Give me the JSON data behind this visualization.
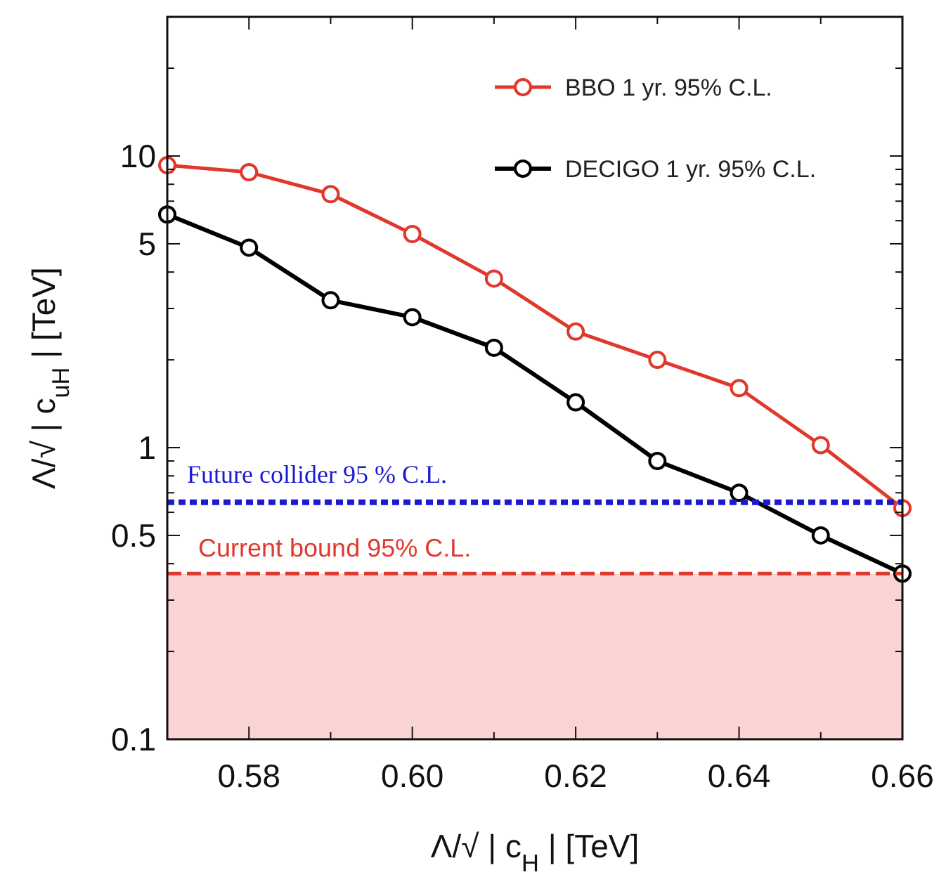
{
  "chart_data": {
    "type": "line",
    "xlabel": "Λ/√ | c$_{H}$ |  [TeV]",
    "ylabel": "Λ/√ | c$_{uH}$ |  [TeV]",
    "x": [
      0.57,
      0.58,
      0.59,
      0.6,
      0.61,
      0.62,
      0.63,
      0.64,
      0.65,
      0.66
    ],
    "series": [
      {
        "name": "BBO 1 yr. 95% C.L.",
        "color": "#e0382c",
        "values": [
          9.3,
          8.8,
          7.4,
          5.4,
          3.8,
          2.5,
          2.0,
          1.6,
          1.02,
          0.62
        ]
      },
      {
        "name": "DECIGO 1 yr. 95% C.L.",
        "color": "#000000",
        "values": [
          6.3,
          4.85,
          3.2,
          2.8,
          2.2,
          1.43,
          0.9,
          0.7,
          0.5,
          0.37
        ]
      }
    ],
    "log": "y",
    "xlim": [
      0.57,
      0.66
    ],
    "ylim": [
      0.1,
      30
    ],
    "xticks": [
      {
        "value": 0.57,
        "label": null
      },
      0.58,
      {
        "value": 0.59,
        "label": null
      },
      {
        "value": 0.6,
        "label": "0.60"
      },
      {
        "value": 0.61,
        "label": null
      },
      0.62,
      {
        "value": 0.63,
        "label": null
      },
      0.64,
      {
        "value": 0.65,
        "label": null
      },
      0.66
    ],
    "yticks": [
      0.1,
      {
        "value": 0.2,
        "label": null
      },
      {
        "value": 0.3,
        "label": null
      },
      {
        "value": 0.4,
        "label": null
      },
      0.5,
      {
        "value": 0.6,
        "label": null
      },
      {
        "value": 0.7,
        "label": null
      },
      {
        "value": 0.8,
        "label": null
      },
      {
        "value": 0.9,
        "label": null
      },
      1,
      {
        "value": 2,
        "label": null
      },
      {
        "value": 3,
        "label": null
      },
      {
        "value": 4,
        "label": null
      },
      5,
      {
        "value": 6,
        "label": null
      },
      {
        "value": 7,
        "label": null
      },
      {
        "value": 8,
        "label": null
      },
      {
        "value": 9,
        "label": null
      },
      10,
      {
        "value": 20,
        "label": null
      },
      {
        "value": 30,
        "label": null
      }
    ],
    "ref_lines": [
      {
        "axis": "y",
        "value": 0.65,
        "label": "Future collider 95 % C.L.",
        "color": "#1a1ad0",
        "line_style": "dotted"
      },
      {
        "axis": "y",
        "value": 0.37,
        "label": "Current bound 95% C.L.",
        "color": "#e0382c",
        "line_style": "dashed"
      }
    ],
    "bands": [
      {
        "axis": "y",
        "from": 0.1,
        "to": 0.37,
        "color": "#f9d4d2"
      }
    ],
    "legend": "top right",
    "marker": "circle",
    "line_style": "solid",
    "grid": false
  }
}
